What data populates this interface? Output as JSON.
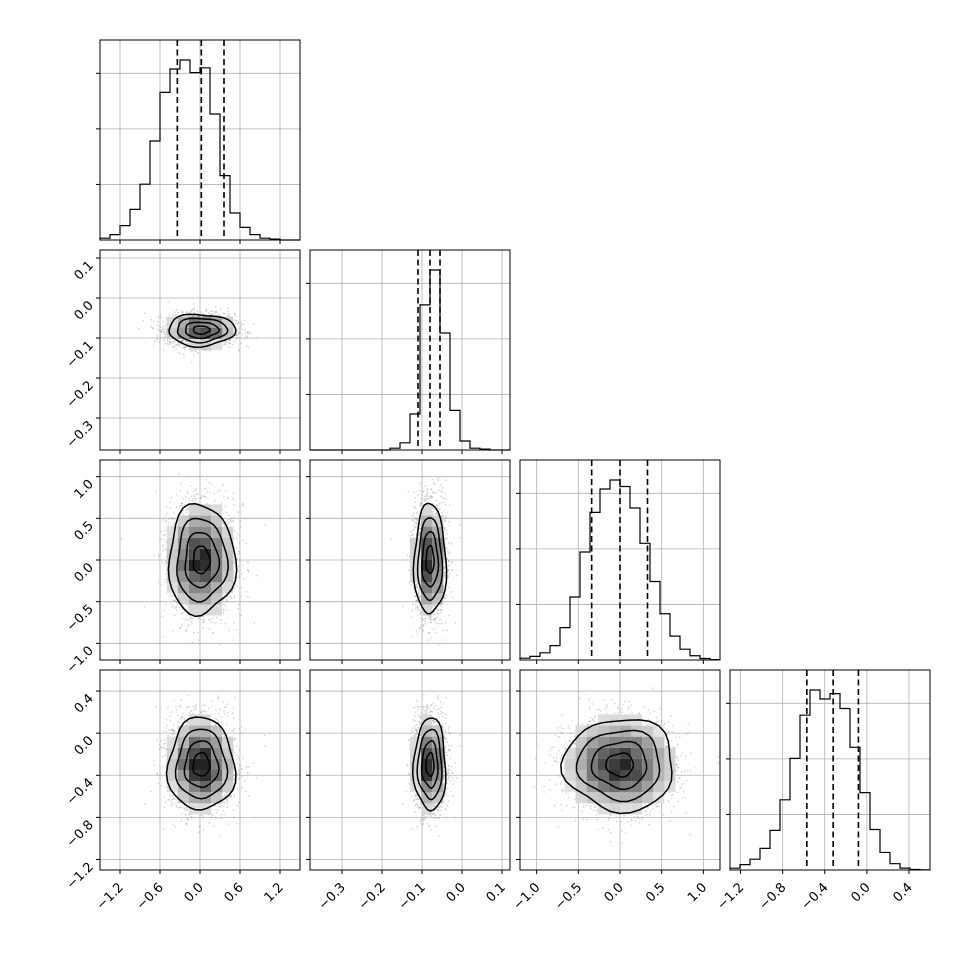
{
  "chart_data": {
    "type": "corner",
    "title": "",
    "parameters": [
      {
        "index": 0,
        "range": [
          -1.5,
          1.5
        ],
        "mean": 0.02,
        "sigma": 0.25,
        "quantiles": [
          -0.34,
          0.02,
          0.36
        ],
        "ticks": [
          -1.2,
          -0.6,
          0.0,
          0.6,
          1.2
        ],
        "tick_labels": [
          "−1.2",
          "−0.6",
          "0.0",
          "0.6",
          "1.2"
        ]
      },
      {
        "index": 1,
        "range": [
          -0.38,
          0.12
        ],
        "mean": -0.08,
        "sigma": 0.02,
        "quantiles": [
          -0.11,
          -0.08,
          -0.055
        ],
        "ticks": [
          -0.3,
          -0.2,
          -0.1,
          0.0,
          0.1
        ],
        "tick_labels": [
          "−0.3",
          "−0.2",
          "−0.1",
          "0.0",
          "0.1"
        ]
      },
      {
        "index": 2,
        "range": [
          -1.2,
          1.2
        ],
        "mean": 0.0,
        "sigma": 0.33,
        "quantiles": [
          -0.34,
          0.0,
          0.33
        ],
        "ticks": [
          -1.0,
          -0.5,
          0.0,
          0.5,
          1.0
        ],
        "tick_labels": [
          "−1.0",
          "−0.5",
          "0.0",
          "0.5",
          "1.0"
        ]
      },
      {
        "index": 3,
        "range": [
          -1.3,
          0.6
        ],
        "mean": -0.3,
        "sigma": 0.22,
        "quantiles": [
          -0.57,
          -0.32,
          -0.08
        ],
        "ticks": [
          -1.2,
          -0.8,
          -0.4,
          0.0,
          0.4
        ],
        "tick_labels": [
          "−1.2",
          "−0.8",
          "−0.4",
          "0.0",
          "0.4"
        ]
      }
    ],
    "histogram_counts_ticks": 3,
    "histograms": [
      {
        "param": 0,
        "bins": 20,
        "density": [
          0.01,
          0.03,
          0.08,
          0.17,
          0.31,
          0.55,
          0.82,
          0.95,
          1.0,
          0.93,
          0.72,
          0.5,
          0.31,
          0.15,
          0.07,
          0.03,
          0.01,
          0.005,
          0.0,
          0.0
        ]
      },
      {
        "param": 1,
        "bins": 20,
        "density": [
          0.0,
          0.0,
          0.0,
          0.0,
          0.0,
          0.0,
          0.0,
          0.0,
          0.01,
          0.04,
          0.2,
          0.65,
          1.0,
          0.65,
          0.22,
          0.05,
          0.01,
          0.005,
          0.0,
          0.0
        ]
      },
      {
        "param": 2,
        "bins": 20,
        "density": [
          0.01,
          0.02,
          0.04,
          0.08,
          0.18,
          0.35,
          0.6,
          0.82,
          0.95,
          1.0,
          0.9,
          0.7,
          0.48,
          0.28,
          0.14,
          0.07,
          0.03,
          0.01,
          0.005,
          0.0
        ]
      },
      {
        "param": 3,
        "bins": 20,
        "density": [
          0.01,
          0.03,
          0.06,
          0.12,
          0.22,
          0.39,
          0.62,
          0.86,
          1.0,
          0.95,
          0.76,
          0.53,
          0.33,
          0.18,
          0.08,
          0.04,
          0.01,
          0.005,
          0.0,
          0.0
        ]
      }
    ],
    "joint_pairs": [
      {
        "x_param": 0,
        "y_param": 1
      },
      {
        "x_param": 0,
        "y_param": 2
      },
      {
        "x_param": 1,
        "y_param": 2
      },
      {
        "x_param": 0,
        "y_param": 3
      },
      {
        "x_param": 1,
        "y_param": 3
      },
      {
        "x_param": 2,
        "y_param": 3
      }
    ],
    "contour_levels_sigma": [
      0.5,
      1.0,
      1.5,
      2.0
    ],
    "grid": true,
    "colors": {
      "ink": "#000000",
      "grid": "#b0b0b0",
      "points": "#999999"
    }
  }
}
